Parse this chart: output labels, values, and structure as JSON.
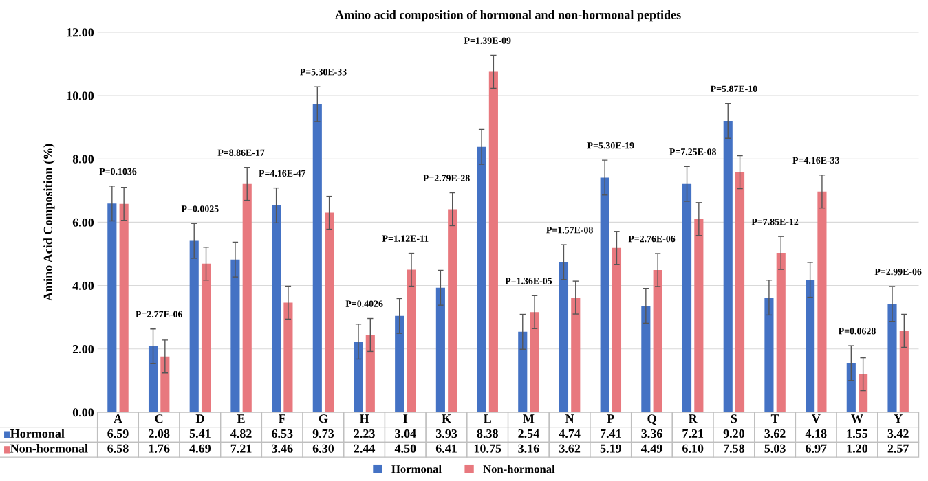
{
  "chart_data": {
    "type": "bar",
    "title": "Amino acid composition of hormonal and non-hormonal peptides",
    "ylabel": "Amino Acid Composition (%)",
    "categories": [
      "A",
      "C",
      "D",
      "E",
      "F",
      "G",
      "H",
      "I",
      "K",
      "L",
      "M",
      "N",
      "P",
      "Q",
      "R",
      "S",
      "T",
      "V",
      "W",
      "Y"
    ],
    "series": [
      {
        "name": "Hormonal",
        "color": "#4472c4",
        "values": [
          6.59,
          2.08,
          5.41,
          4.82,
          6.53,
          9.73,
          2.23,
          3.04,
          3.93,
          8.38,
          2.54,
          4.74,
          7.41,
          3.36,
          7.21,
          9.2,
          3.62,
          4.18,
          1.55,
          3.42
        ],
        "errors": [
          0.55,
          0.55,
          0.55,
          0.55,
          0.55,
          0.55,
          0.55,
          0.55,
          0.55,
          0.55,
          0.55,
          0.55,
          0.55,
          0.55,
          0.55,
          0.55,
          0.55,
          0.55,
          0.55,
          0.55
        ],
        "value_labels": [
          "6.59",
          "2.08",
          "5.41",
          "4.82",
          "6.53",
          "9.73",
          "2.23",
          "3.04",
          "3.93",
          "8.38",
          "2.54",
          "4.74",
          "7.41",
          "3.36",
          "7.21",
          "9.20",
          "3.62",
          "4.18",
          "1.55",
          "3.42"
        ]
      },
      {
        "name": "Non-hormonal",
        "color": "#e8787e",
        "values": [
          6.58,
          1.76,
          4.69,
          7.21,
          3.46,
          6.3,
          2.44,
          4.5,
          6.41,
          10.75,
          3.16,
          3.62,
          5.19,
          4.49,
          6.1,
          7.58,
          5.03,
          6.97,
          1.2,
          2.57
        ],
        "errors": [
          0.52,
          0.52,
          0.52,
          0.52,
          0.52,
          0.52,
          0.52,
          0.52,
          0.52,
          0.52,
          0.52,
          0.52,
          0.52,
          0.52,
          0.52,
          0.52,
          0.52,
          0.52,
          0.52,
          0.52
        ],
        "value_labels": [
          "6.58",
          "1.76",
          "4.69",
          "7.21",
          "3.46",
          "6.30",
          "2.44",
          "4.50",
          "6.41",
          "10.75",
          "3.16",
          "3.62",
          "5.19",
          "4.49",
          "6.10",
          "7.58",
          "5.03",
          "6.97",
          "1.20",
          "2.57"
        ]
      }
    ],
    "ylim": [
      0,
      12
    ],
    "yticks": [
      {
        "value": 0,
        "label": "0.00"
      },
      {
        "value": 2,
        "label": "2.00"
      },
      {
        "value": 4,
        "label": "4.00"
      },
      {
        "value": 6,
        "label": "6.00"
      },
      {
        "value": 8,
        "label": "8.00"
      },
      {
        "value": 10,
        "label": "10.00"
      },
      {
        "value": 12,
        "label": "12.00"
      }
    ],
    "grid": "y",
    "legend": "bottom",
    "annotations": [
      "P=0.1036",
      "P=2.77E-06",
      "P=0.0025",
      "P=8.86E-17",
      "P=4.16E-47",
      "P=5.30E-33",
      "P=0.4026",
      "P=1.12E-11",
      "P=2.79E-28",
      "P=1.39E-09",
      "P=1.36E-05",
      "P=1.57E-08",
      "P=5.30E-19",
      "P=2.76E-06",
      "P=7.25E-08",
      "P=5.87E-10",
      "P=7.85E-12",
      "P=4.16E-33",
      "P=0.0628",
      "P=2.99E-06"
    ]
  }
}
